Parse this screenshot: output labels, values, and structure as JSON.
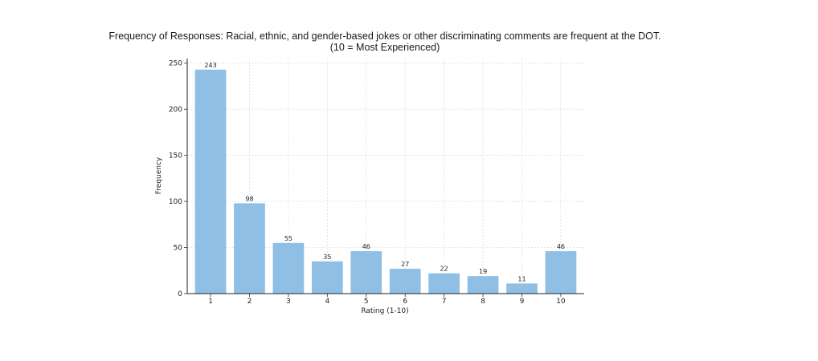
{
  "chart_data": {
    "type": "bar",
    "title": "Frequency of Responses: Racial, ethnic, and gender-based jokes or other discriminating comments are frequent at the DOT.",
    "subtitle": "(10 = Most Experienced)",
    "xlabel": "Rating (1-10)",
    "ylabel": "Frequency",
    "categories": [
      "1",
      "2",
      "3",
      "4",
      "5",
      "6",
      "7",
      "8",
      "9",
      "10"
    ],
    "values": [
      243,
      98,
      55,
      35,
      46,
      27,
      22,
      19,
      11,
      46
    ],
    "ylim": [
      0,
      255
    ],
    "yticks": [
      0,
      50,
      100,
      150,
      200,
      250
    ],
    "grid": true,
    "bar_color": "#8fbfe4"
  }
}
